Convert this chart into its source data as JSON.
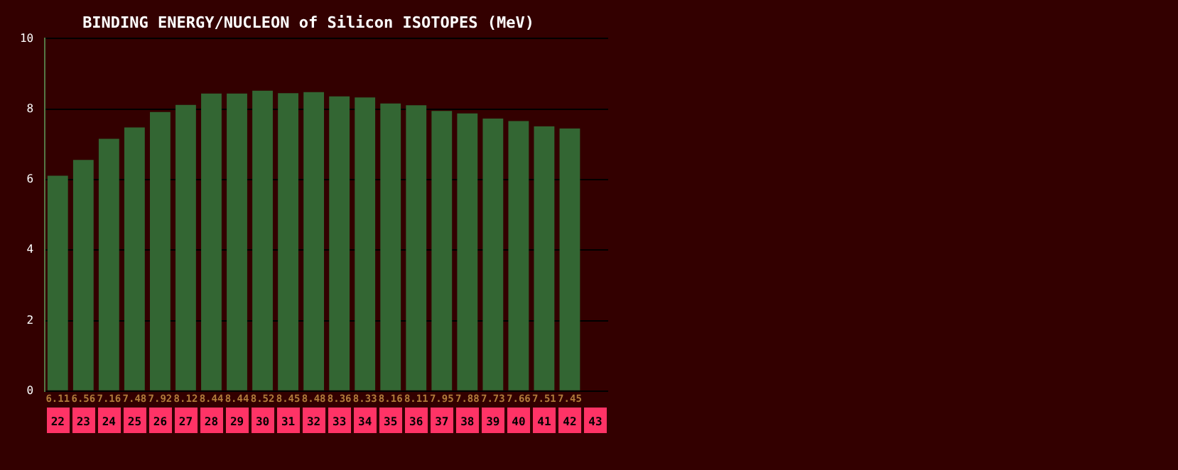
{
  "chart_data": {
    "type": "bar",
    "title": "BINDING ENERGY/NUCLEON of Silicon ISOTOPES (MeV)",
    "categories": [
      "22",
      "23",
      "24",
      "25",
      "26",
      "27",
      "28",
      "29",
      "30",
      "31",
      "32",
      "33",
      "34",
      "35",
      "36",
      "37",
      "38",
      "39",
      "40",
      "41",
      "42",
      "43"
    ],
    "values": [
      6.11,
      6.56,
      7.16,
      7.48,
      7.92,
      8.12,
      8.44,
      8.44,
      8.52,
      8.45,
      8.48,
      8.36,
      8.33,
      8.16,
      8.11,
      7.95,
      7.88,
      7.73,
      7.66,
      7.51,
      7.45,
      null
    ],
    "color": "#336633",
    "ylim": [
      0,
      10
    ],
    "yticks": [
      0,
      2,
      4,
      6,
      8,
      10
    ],
    "grid": "y",
    "data_labels": true,
    "legend": false
  }
}
